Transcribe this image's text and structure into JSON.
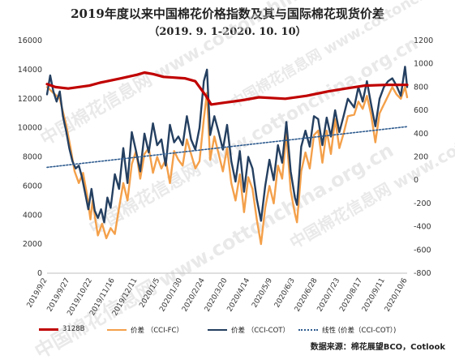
{
  "title": "2019年度以来中国棉花价格指数及其与国际棉花现货价差",
  "subtitle": "（2019. 9. 1-2020. 10. 10）",
  "source": "数据来源：棉花展望BCO，Cotlook",
  "watermark": "中国棉花信息网  www.cottonchina.org.cn",
  "legend": {
    "s1": "3128B",
    "s2": "价差 （CCI-FC）",
    "s3": "价差 （CCI-COT）",
    "s4": "线性 (价差（CCI-COT）)"
  },
  "colors": {
    "s1": "#c00000",
    "s2": "#f4a04a",
    "s3": "#243f60",
    "s4": "#2e5b8e"
  },
  "chart_data": {
    "type": "line",
    "x_tick_labels": [
      "2019/9/2",
      "2019/9/27",
      "2019/10/22",
      "2019/11/16",
      "2019/12/11",
      "2020/1/5",
      "2020/1/30",
      "2020/2/24",
      "2020/3/20",
      "2020/4/14",
      "2020/5/9",
      "2020/6/3",
      "2020/6/28",
      "2020/7/23",
      "2020/8/17",
      "2020/9/11",
      "2020/10/6"
    ],
    "y_left": {
      "min": 0,
      "max": 16000,
      "step": 2000
    },
    "y_right": {
      "min": -800,
      "max": 1200,
      "step": 200
    },
    "series": [
      {
        "name": "3128B",
        "axis": "left",
        "points": [
          [
            0,
            13000
          ],
          [
            8,
            12800
          ],
          [
            20,
            12700
          ],
          [
            40,
            12900
          ],
          [
            50,
            13100
          ],
          [
            70,
            13400
          ],
          [
            85,
            13650
          ],
          [
            92,
            13800
          ],
          [
            100,
            13700
          ],
          [
            110,
            13500
          ],
          [
            120,
            13450
          ],
          [
            130,
            13400
          ],
          [
            140,
            13200
          ],
          [
            150,
            12200
          ],
          [
            155,
            11600
          ],
          [
            165,
            11700
          ],
          [
            185,
            11900
          ],
          [
            200,
            12100
          ],
          [
            225,
            12000
          ],
          [
            245,
            12200
          ],
          [
            265,
            12500
          ],
          [
            282,
            12700
          ],
          [
            300,
            12900
          ],
          [
            320,
            12950
          ],
          [
            340,
            12950
          ]
        ]
      },
      {
        "name": "价差 （CCI-FC）",
        "axis": "left",
        "points": [
          [
            0,
            12800
          ],
          [
            6,
            12400
          ],
          [
            12,
            12000
          ],
          [
            18,
            10200
          ],
          [
            22,
            8700
          ],
          [
            26,
            7000
          ],
          [
            30,
            6200
          ],
          [
            34,
            6900
          ],
          [
            38,
            5300
          ],
          [
            41,
            3700
          ],
          [
            43,
            5000
          ],
          [
            46,
            3500
          ],
          [
            48,
            2600
          ],
          [
            52,
            3400
          ],
          [
            56,
            2400
          ],
          [
            60,
            3100
          ],
          [
            64,
            2700
          ],
          [
            68,
            4500
          ],
          [
            72,
            6200
          ],
          [
            76,
            5000
          ],
          [
            80,
            7500
          ],
          [
            84,
            8400
          ],
          [
            88,
            6500
          ],
          [
            92,
            8200
          ],
          [
            96,
            8600
          ],
          [
            100,
            6900
          ],
          [
            104,
            8000
          ],
          [
            108,
            7200
          ],
          [
            112,
            7800
          ],
          [
            116,
            6200
          ],
          [
            120,
            8400
          ],
          [
            124,
            7800
          ],
          [
            128,
            7400
          ],
          [
            132,
            9200
          ],
          [
            136,
            8200
          ],
          [
            140,
            7200
          ],
          [
            144,
            7700
          ],
          [
            148,
            10600
          ],
          [
            151,
            12400
          ],
          [
            154,
            7800
          ],
          [
            158,
            9400
          ],
          [
            162,
            8200
          ],
          [
            166,
            7000
          ],
          [
            170,
            8600
          ],
          [
            174,
            6200
          ],
          [
            178,
            5000
          ],
          [
            182,
            6800
          ],
          [
            186,
            4200
          ],
          [
            190,
            6600
          ],
          [
            194,
            5800
          ],
          [
            198,
            3700
          ],
          [
            202,
            2000
          ],
          [
            206,
            4500
          ],
          [
            210,
            6000
          ],
          [
            214,
            4800
          ],
          [
            218,
            7400
          ],
          [
            222,
            6500
          ],
          [
            226,
            9600
          ],
          [
            230,
            5700
          ],
          [
            234,
            4100
          ],
          [
            236,
            3500
          ],
          [
            240,
            7000
          ],
          [
            244,
            8300
          ],
          [
            248,
            7200
          ],
          [
            252,
            9500
          ],
          [
            256,
            9800
          ],
          [
            260,
            7600
          ],
          [
            264,
            9800
          ],
          [
            268,
            8200
          ],
          [
            272,
            10600
          ],
          [
            276,
            8600
          ],
          [
            280,
            9600
          ],
          [
            284,
            10800
          ],
          [
            290,
            10900
          ],
          [
            294,
            11800
          ],
          [
            298,
            11300
          ],
          [
            302,
            12200
          ],
          [
            306,
            10900
          ],
          [
            310,
            9000
          ],
          [
            314,
            11000
          ],
          [
            318,
            11600
          ],
          [
            322,
            12200
          ],
          [
            326,
            12800
          ],
          [
            330,
            12300
          ],
          [
            334,
            12000
          ],
          [
            338,
            12800
          ],
          [
            340,
            12100
          ]
        ]
      },
      {
        "name": "价差 （CCI-COT）",
        "axis": "left",
        "points": [
          [
            0,
            12300
          ],
          [
            3,
            13600
          ],
          [
            6,
            12500
          ],
          [
            9,
            11800
          ],
          [
            12,
            12500
          ],
          [
            15,
            10800
          ],
          [
            18,
            9800
          ],
          [
            21,
            8600
          ],
          [
            24,
            7700
          ],
          [
            27,
            7200
          ],
          [
            30,
            7400
          ],
          [
            33,
            6600
          ],
          [
            36,
            5500
          ],
          [
            39,
            4400
          ],
          [
            42,
            5800
          ],
          [
            45,
            4300
          ],
          [
            48,
            3800
          ],
          [
            51,
            4400
          ],
          [
            54,
            3500
          ],
          [
            57,
            5200
          ],
          [
            60,
            4500
          ],
          [
            64,
            6800
          ],
          [
            68,
            5800
          ],
          [
            72,
            8600
          ],
          [
            76,
            6200
          ],
          [
            80,
            9700
          ],
          [
            84,
            8400
          ],
          [
            88,
            7000
          ],
          [
            92,
            9600
          ],
          [
            96,
            8300
          ],
          [
            100,
            10300
          ],
          [
            104,
            8800
          ],
          [
            108,
            9200
          ],
          [
            112,
            7400
          ],
          [
            116,
            10200
          ],
          [
            120,
            9000
          ],
          [
            124,
            9400
          ],
          [
            128,
            8800
          ],
          [
            132,
            10800
          ],
          [
            136,
            9200
          ],
          [
            140,
            8500
          ],
          [
            144,
            10000
          ],
          [
            148,
            13200
          ],
          [
            151,
            14000
          ],
          [
            154,
            9500
          ],
          [
            158,
            10800
          ],
          [
            162,
            9700
          ],
          [
            166,
            8500
          ],
          [
            170,
            10200
          ],
          [
            174,
            7700
          ],
          [
            178,
            6300
          ],
          [
            182,
            8400
          ],
          [
            186,
            5600
          ],
          [
            190,
            8000
          ],
          [
            194,
            7200
          ],
          [
            198,
            5100
          ],
          [
            202,
            3600
          ],
          [
            206,
            6000
          ],
          [
            210,
            7800
          ],
          [
            214,
            6400
          ],
          [
            218,
            8800
          ],
          [
            222,
            7600
          ],
          [
            226,
            10400
          ],
          [
            230,
            7000
          ],
          [
            234,
            5200
          ],
          [
            236,
            4700
          ],
          [
            240,
            8700
          ],
          [
            244,
            9800
          ],
          [
            248,
            8700
          ],
          [
            252,
            10800
          ],
          [
            256,
            10600
          ],
          [
            260,
            8800
          ],
          [
            264,
            10700
          ],
          [
            268,
            9400
          ],
          [
            272,
            11200
          ],
          [
            276,
            9700
          ],
          [
            280,
            10800
          ],
          [
            284,
            12000
          ],
          [
            290,
            11400
          ],
          [
            294,
            12800
          ],
          [
            298,
            11800
          ],
          [
            302,
            13200
          ],
          [
            306,
            11600
          ],
          [
            310,
            10100
          ],
          [
            314,
            12000
          ],
          [
            318,
            12800
          ],
          [
            322,
            13200
          ],
          [
            326,
            13400
          ],
          [
            330,
            12900
          ],
          [
            334,
            12200
          ],
          [
            338,
            14200
          ],
          [
            340,
            12800
          ]
        ]
      },
      {
        "name": "线性 (价差（CCI-COT）)",
        "axis": "right",
        "points": [
          [
            0,
            110
          ],
          [
            340,
            460
          ]
        ]
      }
    ],
    "x_range": [
      0,
      340
    ]
  }
}
